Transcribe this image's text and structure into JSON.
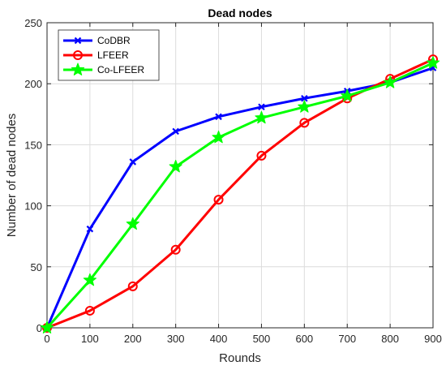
{
  "chart_data": {
    "type": "line",
    "title": "Dead nodes",
    "xlabel": "Rounds",
    "ylabel": "Number of dead nodes",
    "x": [
      0,
      100,
      200,
      300,
      400,
      500,
      600,
      700,
      800,
      900
    ],
    "xlim": [
      0,
      900
    ],
    "ylim": [
      0,
      250
    ],
    "xticks": [
      "0",
      "100",
      "200",
      "300",
      "400",
      "500",
      "600",
      "700",
      "800",
      "900"
    ],
    "yticks": [
      "0",
      "50",
      "100",
      "150",
      "200",
      "250"
    ],
    "grid": true,
    "legend_position": "top-left",
    "series": [
      {
        "name": "CoDBR",
        "color": "#0000ff",
        "marker": "x-marker",
        "values": [
          0,
          81,
          136,
          161,
          173,
          181,
          188,
          194,
          201,
          213
        ]
      },
      {
        "name": "LFEER",
        "color": "#ff0000",
        "marker": "circle-marker",
        "values": [
          0,
          14,
          34,
          64,
          105,
          141,
          168,
          188,
          204,
          220
        ]
      },
      {
        "name": "Co-LFEER",
        "color": "#00ff00",
        "marker": "star-marker",
        "values": [
          0,
          39,
          85,
          132,
          156,
          172,
          181,
          190,
          201,
          217
        ]
      }
    ]
  }
}
